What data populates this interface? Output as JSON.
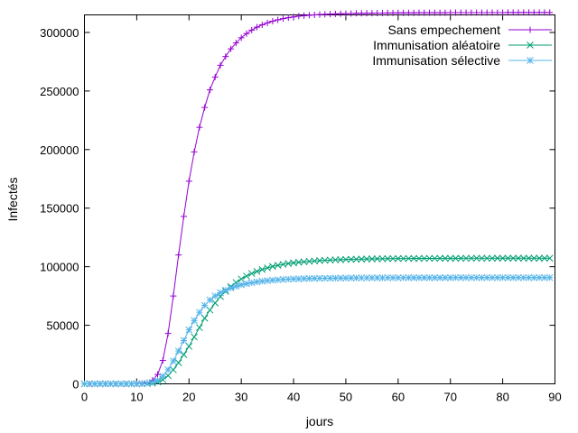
{
  "chart_data": {
    "type": "line",
    "xlabel": "jours",
    "ylabel": "Infectés",
    "xlim": [
      0,
      90
    ],
    "ylim": [
      0,
      315000
    ],
    "xticks": [
      0,
      10,
      20,
      30,
      40,
      50,
      60,
      70,
      80,
      90
    ],
    "yticks": [
      0,
      50000,
      100000,
      150000,
      200000,
      250000,
      300000
    ],
    "xtick_labels": [
      "0",
      "10",
      "20",
      "30",
      "40",
      "50",
      "60",
      "70",
      "80",
      "90"
    ],
    "ytick_labels": [
      "0",
      "50000",
      "100000",
      "150000",
      "200000",
      "250000",
      "300000"
    ],
    "grid": false,
    "legend_position": "top-right",
    "series": [
      {
        "name": "Sans empechement",
        "color": "#9400d3",
        "marker": "plus",
        "x": [
          0,
          1,
          2,
          3,
          4,
          5,
          6,
          7,
          8,
          9,
          10,
          11,
          12,
          13,
          14,
          15,
          16,
          17,
          18,
          19,
          20,
          21,
          22,
          23,
          24,
          25,
          26,
          27,
          28,
          29,
          30,
          31,
          32,
          33,
          34,
          35,
          36,
          37,
          38,
          39,
          40,
          41,
          42,
          43,
          44,
          45,
          46,
          47,
          48,
          49,
          50,
          51,
          52,
          53,
          54,
          55,
          56,
          57,
          58,
          59,
          60,
          61,
          62,
          63,
          64,
          65,
          66,
          67,
          68,
          69,
          70,
          71,
          72,
          73,
          74,
          75,
          76,
          77,
          78,
          79,
          80,
          81,
          82,
          83,
          84,
          85,
          86,
          87,
          88,
          89
        ],
        "values": [
          0,
          0,
          0,
          0,
          0,
          0,
          0,
          0,
          0,
          0,
          100,
          300,
          1000,
          3000,
          8000,
          20000,
          43000,
          75000,
          110000,
          143000,
          173000,
          198000,
          219000,
          236000,
          251000,
          262000,
          272000,
          279500,
          286000,
          291000,
          295500,
          299000,
          302000,
          304500,
          306500,
          308200,
          309600,
          310800,
          311800,
          312600,
          313300,
          313900,
          314300,
          314700,
          315000,
          315300,
          315500,
          315700,
          315850,
          316000,
          316100,
          316200,
          316300,
          316350,
          316400,
          316450,
          316500,
          316550,
          316600,
          316650,
          316700,
          316700,
          316750,
          316750,
          316800,
          316800,
          316800,
          316850,
          316850,
          316850,
          316900,
          316900,
          316900,
          316900,
          316900,
          316950,
          316950,
          316950,
          316950,
          316950,
          316950,
          317000,
          317000,
          317000,
          317000,
          317000,
          317000,
          317000,
          317000,
          317000
        ]
      },
      {
        "name": "Immunisation aléatoire",
        "color": "#009e73",
        "marker": "cross",
        "x": [
          0,
          1,
          2,
          3,
          4,
          5,
          6,
          7,
          8,
          9,
          10,
          11,
          12,
          13,
          14,
          15,
          16,
          17,
          18,
          19,
          20,
          21,
          22,
          23,
          24,
          25,
          26,
          27,
          28,
          29,
          30,
          31,
          32,
          33,
          34,
          35,
          36,
          37,
          38,
          39,
          40,
          41,
          42,
          43,
          44,
          45,
          46,
          47,
          48,
          49,
          50,
          51,
          52,
          53,
          54,
          55,
          56,
          57,
          58,
          59,
          60,
          61,
          62,
          63,
          64,
          65,
          66,
          67,
          68,
          69,
          70,
          71,
          72,
          73,
          74,
          75,
          76,
          77,
          78,
          79,
          80,
          81,
          82,
          83,
          84,
          85,
          86,
          87,
          88,
          89
        ],
        "values": [
          0,
          0,
          0,
          0,
          0,
          0,
          0,
          0,
          0,
          0,
          0,
          50,
          200,
          600,
          1500,
          3500,
          7000,
          12000,
          18000,
          25000,
          32000,
          40000,
          48000,
          56000,
          63000,
          69000,
          74500,
          79000,
          83000,
          86500,
          89500,
          92000,
          94200,
          96000,
          97600,
          99000,
          100200,
          101200,
          102000,
          102700,
          103300,
          103800,
          104200,
          104600,
          104900,
          105200,
          105450,
          105650,
          105850,
          106000,
          106150,
          106300,
          106400,
          106500,
          106600,
          106700,
          106750,
          106800,
          106850,
          106900,
          106950,
          107000,
          107000,
          107050,
          107050,
          107100,
          107100,
          107100,
          107150,
          107150,
          107150,
          107150,
          107200,
          107200,
          107200,
          107200,
          107200,
          107200,
          107200,
          107250,
          107250,
          107250,
          107250,
          107250,
          107250,
          107250,
          107250,
          107250,
          107250,
          107250
        ]
      },
      {
        "name": "Immunisation sélective",
        "color": "#56b4e9",
        "marker": "star",
        "x": [
          0,
          1,
          2,
          3,
          4,
          5,
          6,
          7,
          8,
          9,
          10,
          11,
          12,
          13,
          14,
          15,
          16,
          17,
          18,
          19,
          20,
          21,
          22,
          23,
          24,
          25,
          26,
          27,
          28,
          29,
          30,
          31,
          32,
          33,
          34,
          35,
          36,
          37,
          38,
          39,
          40,
          41,
          42,
          43,
          44,
          45,
          46,
          47,
          48,
          49,
          50,
          51,
          52,
          53,
          54,
          55,
          56,
          57,
          58,
          59,
          60,
          61,
          62,
          63,
          64,
          65,
          66,
          67,
          68,
          69,
          70,
          71,
          72,
          73,
          74,
          75,
          76,
          77,
          78,
          79,
          80,
          81,
          82,
          83,
          84,
          85,
          86,
          87,
          88,
          89
        ],
        "values": [
          0,
          0,
          0,
          0,
          0,
          0,
          0,
          0,
          0,
          0,
          0,
          100,
          400,
          1200,
          3000,
          6500,
          12000,
          19500,
          28000,
          37000,
          46000,
          54000,
          61000,
          67000,
          71500,
          75000,
          77800,
          80000,
          81800,
          83300,
          84500,
          85500,
          86300,
          87000,
          87600,
          88100,
          88500,
          88800,
          89100,
          89300,
          89500,
          89650,
          89800,
          89900,
          90000,
          90100,
          90150,
          90200,
          90250,
          90300,
          90350,
          90400,
          90400,
          90450,
          90450,
          90500,
          90500,
          90500,
          90550,
          90550,
          90550,
          90550,
          90600,
          90600,
          90600,
          90600,
          90600,
          90600,
          90600,
          90600,
          90600,
          90650,
          90650,
          90650,
          90650,
          90650,
          90650,
          90650,
          90650,
          90650,
          90650,
          90650,
          90650,
          90650,
          90650,
          90650,
          90650,
          90650,
          90650,
          90650
        ]
      }
    ]
  }
}
